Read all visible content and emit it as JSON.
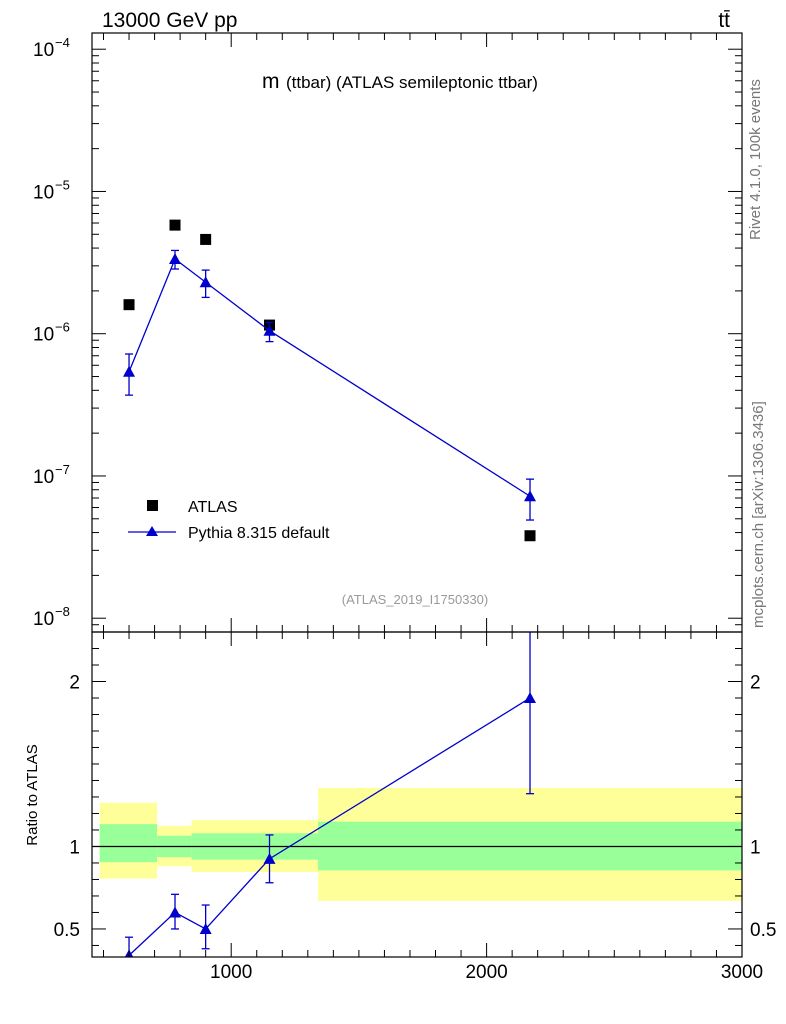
{
  "header": {
    "energy_label": "13000 GeV pp",
    "process_label": "tt̄"
  },
  "side": {
    "rivet_label": "Rivet 4.1.0,  100k events",
    "site_label": "mcplots.cern.ch [arXiv:1306.3436]"
  },
  "chart_data": [
    {
      "type": "scatter",
      "title_m": "m",
      "title_rest": "(ttbar) (ATLAS semileptonic ttbar)",
      "watermark": "(ATLAS_2019_I1750330)",
      "yscale": "log",
      "xlim": [
        455,
        3000
      ],
      "ylim": [
        8e-09,
        0.00013
      ],
      "ytick_labels": [
        {
          "value": 0.0001,
          "base": "10",
          "exp": "−4"
        },
        {
          "value": 1e-05,
          "base": "10",
          "exp": "−5"
        },
        {
          "value": 1e-06,
          "base": "10",
          "exp": "−6"
        },
        {
          "value": 1e-07,
          "base": "10",
          "exp": "−7"
        },
        {
          "value": 1e-08,
          "base": "10",
          "exp": "−8"
        }
      ],
      "legend_position": "bottom-left",
      "series": [
        {
          "name": "ATLAS",
          "marker": "square",
          "color": "#000000",
          "x": [
            600,
            780,
            900,
            1150,
            2170
          ],
          "y": [
            1.6e-06,
            5.8e-06,
            4.6e-06,
            1.15e-06,
            3.8e-08
          ]
        },
        {
          "name": "Pythia 8.315 default",
          "marker": "triangle",
          "color": "#0000cc",
          "x": [
            600,
            780,
            900,
            1150,
            2170
          ],
          "y": [
            5.4e-07,
            3.35e-06,
            2.3e-06,
            1.05e-06,
            7.2e-08
          ],
          "yerr_low": [
            3.7e-07,
            2.85e-06,
            1.8e-06,
            8.8e-07,
            4.9e-08
          ],
          "yerr_high": [
            7.2e-07,
            3.85e-06,
            2.8e-06,
            1.2e-06,
            9.5e-08
          ]
        }
      ]
    },
    {
      "type": "scatter",
      "ylabel": "Ratio to ATLAS",
      "xlim": [
        455,
        3000
      ],
      "ylim": [
        0.33,
        2.3
      ],
      "xticks": [
        1000,
        2000,
        3000
      ],
      "xtick_labels": [
        "1000",
        "2000",
        "3000"
      ],
      "yticks": [
        0.5,
        1,
        2
      ],
      "ytick_labels": [
        "0.5",
        "1",
        "2"
      ],
      "bands": [
        {
          "x": [
            485,
            710
          ],
          "stat": [
            0.905,
            1.135
          ],
          "total": [
            0.805,
            1.265
          ]
        },
        {
          "x": [
            710,
            845
          ],
          "stat": [
            0.935,
            1.065
          ],
          "total": [
            0.88,
            1.125
          ]
        },
        {
          "x": [
            845,
            1340
          ],
          "stat": [
            0.92,
            1.08
          ],
          "total": [
            0.845,
            1.16
          ]
        },
        {
          "x": [
            1340,
            3000
          ],
          "stat": [
            0.855,
            1.15
          ],
          "total": [
            0.67,
            1.355
          ]
        }
      ],
      "band_colors": {
        "stat": "#99ff99",
        "total": "#ffff99"
      },
      "series": [
        {
          "name": "Pythia 8.315 default",
          "color": "#0000cc",
          "x": [
            600,
            780,
            900,
            1150,
            2170
          ],
          "y": [
            0.34,
            0.6,
            0.5,
            0.925,
            1.9
          ],
          "yerr_low": [
            0.25,
            0.5,
            0.38,
            0.78,
            1.32
          ],
          "yerr_high": [
            0.45,
            0.71,
            0.645,
            1.07,
            2.55
          ]
        }
      ]
    }
  ]
}
